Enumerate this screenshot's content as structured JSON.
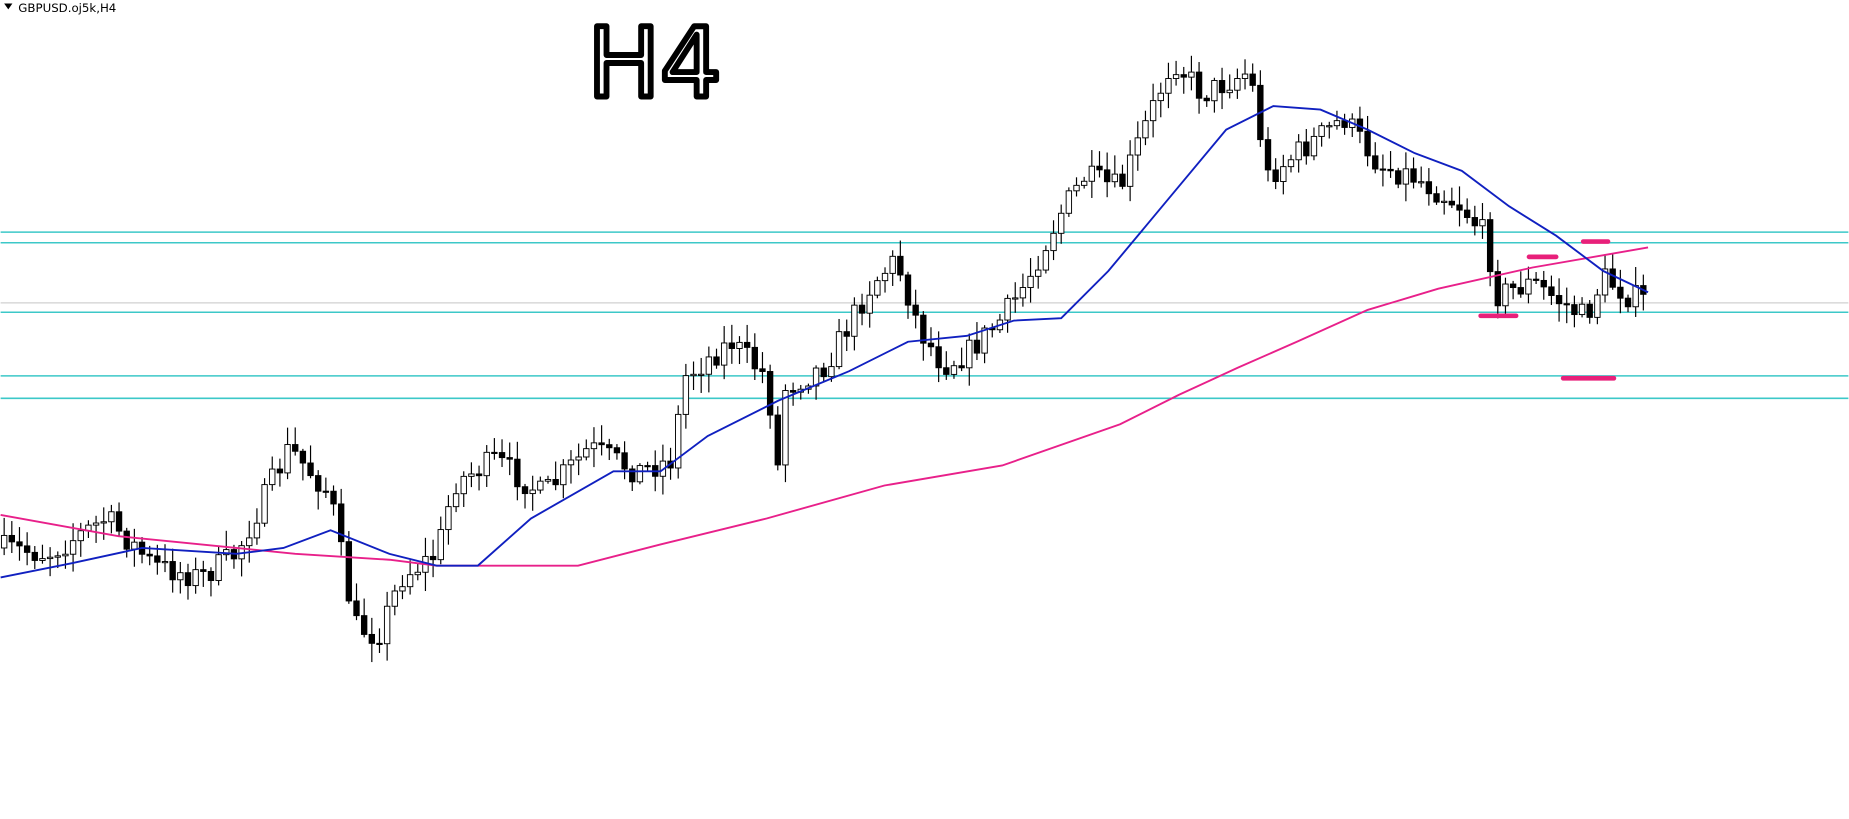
{
  "window": {
    "title": "GBPUSD.oj5k,H4"
  },
  "annotation": "H4"
}
